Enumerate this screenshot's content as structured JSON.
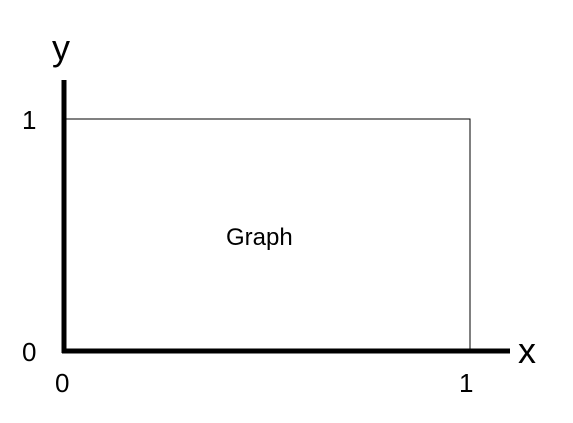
{
  "axes": {
    "x_label": "x",
    "y_label": "y",
    "x_ticks": [
      "0",
      "1"
    ],
    "y_ticks": [
      "0",
      "1"
    ]
  },
  "region": {
    "label": "Graph",
    "x_range": [
      0,
      1
    ],
    "y_range": [
      0,
      1
    ]
  },
  "colors": {
    "axis": "#000000",
    "box": "#000000",
    "background": "#ffffff"
  }
}
